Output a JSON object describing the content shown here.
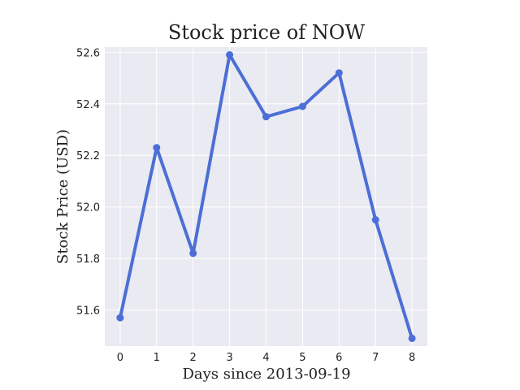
{
  "chart_data": {
    "type": "line",
    "title": "Stock price of NOW",
    "xlabel": "Days since 2013-09-19",
    "ylabel": "Stock Price (USD)",
    "x": [
      0,
      1,
      2,
      3,
      4,
      5,
      6,
      7,
      8
    ],
    "series": [
      {
        "values": [
          51.57,
          52.23,
          51.82,
          52.59,
          52.35,
          52.39,
          52.52,
          51.95,
          51.49
        ]
      }
    ],
    "xlim": [
      -0.42,
      8.42
    ],
    "ylim": [
      51.46,
      52.62
    ],
    "xticks": [
      "0",
      "1",
      "2",
      "3",
      "4",
      "5",
      "6",
      "7",
      "8"
    ],
    "yticks": [
      "51.6",
      "51.8",
      "52.0",
      "52.2",
      "52.4",
      "52.6"
    ],
    "grid": true,
    "colors": {
      "line": "#4c6fd6",
      "plot_bg": "#eaeaf2",
      "grid": "#ffffff"
    }
  }
}
